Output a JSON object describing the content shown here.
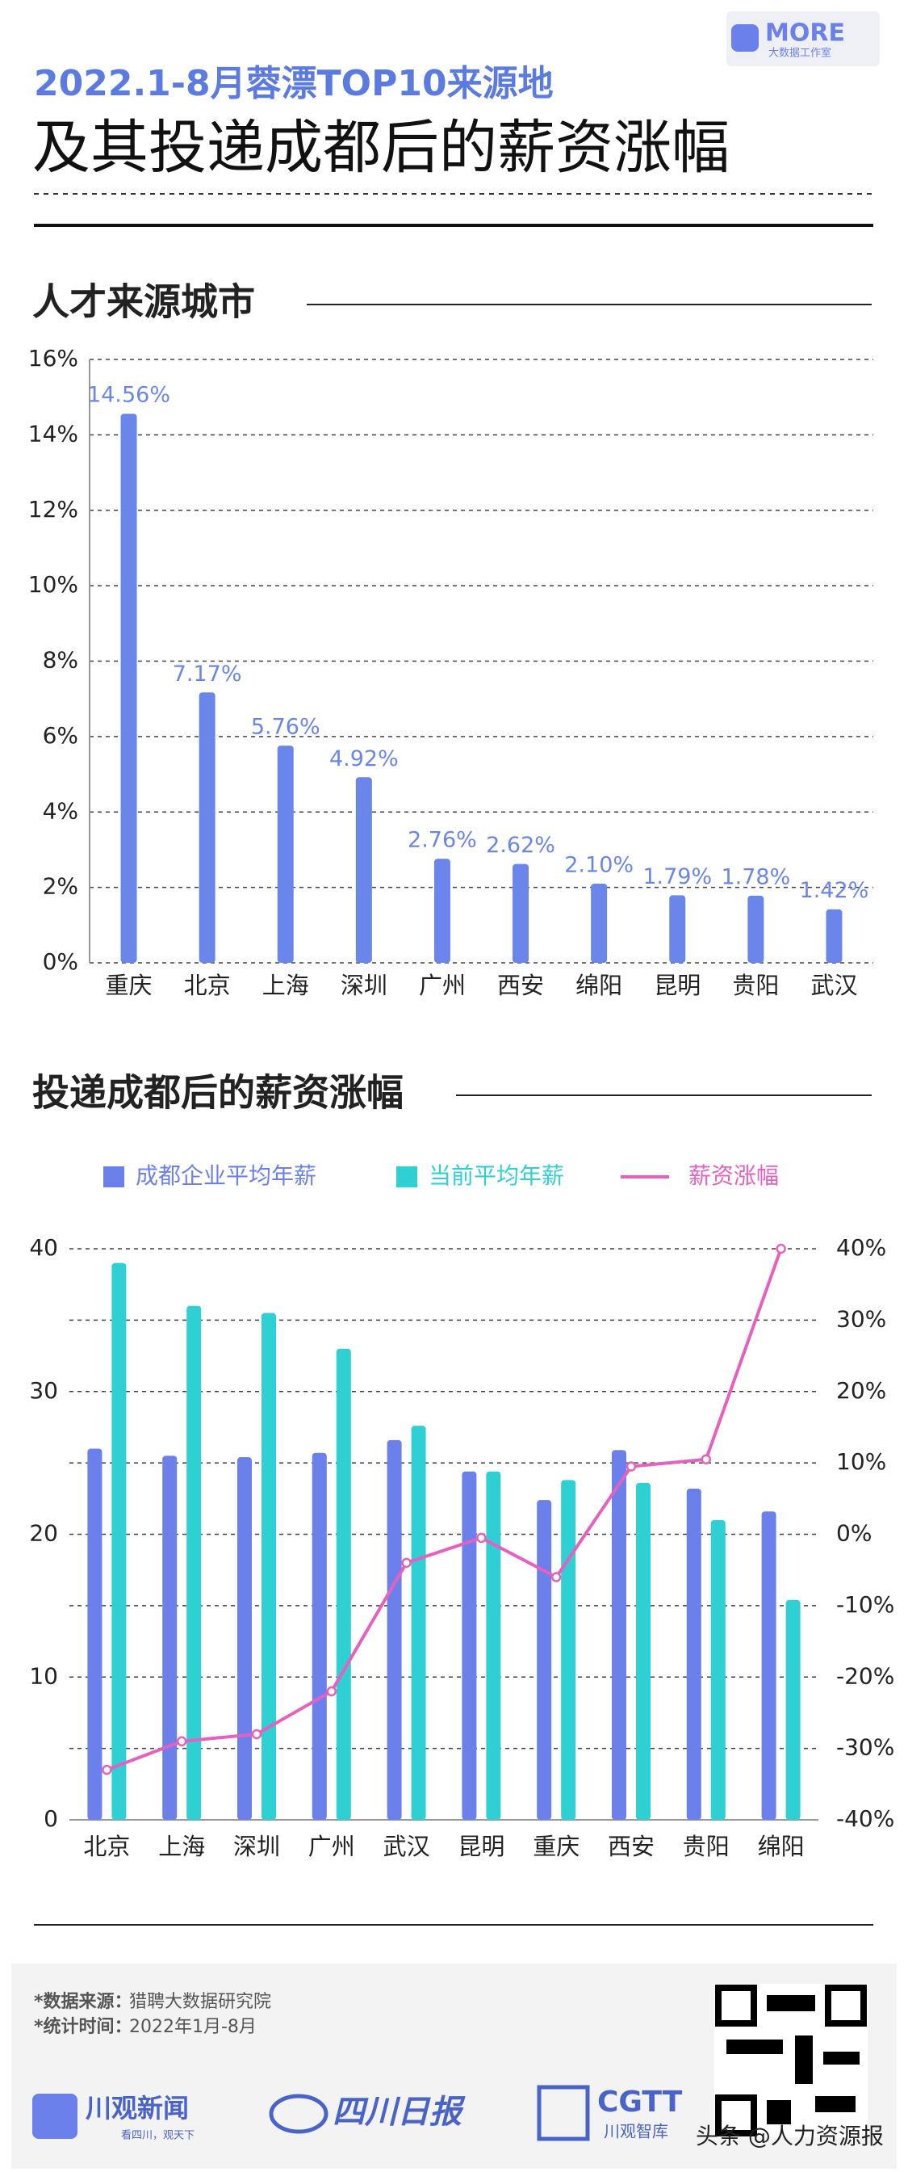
{
  "header": {
    "title_line1": "2022.1-8月蓉漂TOP10来源地",
    "title_line2": "及其投递成都后的薪资涨幅",
    "logo_text": "MORE",
    "logo_sub": "大数据工作室"
  },
  "chart_data": [
    {
      "type": "bar",
      "title": "人才来源城市",
      "categories": [
        "重庆",
        "北京",
        "上海",
        "深圳",
        "广州",
        "西安",
        "绵阳",
        "昆明",
        "贵阳",
        "武汉"
      ],
      "values": [
        14.56,
        7.17,
        5.76,
        4.92,
        2.76,
        2.62,
        2.1,
        1.79,
        1.78,
        1.42
      ],
      "value_labels": [
        "14.56%",
        "7.17%",
        "5.76%",
        "4.92%",
        "2.76%",
        "2.62%",
        "2.10%",
        "1.79%",
        "1.78%",
        "1.42%"
      ],
      "color": "#6b86ea",
      "ylim": [
        0,
        16
      ],
      "yticks": [
        {
          "value": 0,
          "label": "0%"
        },
        {
          "value": 2,
          "label": "2%"
        },
        {
          "value": 4,
          "label": "4%"
        },
        {
          "value": 6,
          "label": "6%"
        },
        {
          "value": 8,
          "label": "8%"
        },
        {
          "value": 10,
          "label": "10%"
        },
        {
          "value": 12,
          "label": "12%"
        },
        {
          "value": 14,
          "label": "14%"
        },
        {
          "value": 16,
          "label": "16%"
        }
      ],
      "grid": true
    },
    {
      "type": "combo",
      "title": "投递成都后的薪资涨幅",
      "categories": [
        "北京",
        "上海",
        "深圳",
        "广州",
        "武汉",
        "昆明",
        "重庆",
        "西安",
        "贵阳",
        "绵阳"
      ],
      "series": [
        {
          "name": "成都企业平均年薪",
          "type": "bar",
          "color": "#6b80ea",
          "values": [
            26,
            25.5,
            25.4,
            25.7,
            26.6,
            24.4,
            22.4,
            25.9,
            23.2,
            21.6
          ]
        },
        {
          "name": "当前平均年薪",
          "type": "bar",
          "color": "#2ed0d4",
          "values": [
            39,
            36,
            35.5,
            33,
            27.6,
            24.4,
            23.8,
            23.6,
            21,
            15.4
          ]
        },
        {
          "name": "薪资涨幅",
          "type": "line",
          "axis": "y2",
          "color": "#e660c0",
          "values": [
            -33,
            -29,
            -28,
            -22,
            -4,
            -0.5,
            -6,
            9.5,
            10.5,
            40
          ]
        }
      ],
      "ylim": [
        0,
        40
      ],
      "yticks": [
        0,
        10,
        20,
        30,
        40
      ],
      "y2lim": [
        -40,
        40
      ],
      "y2ticks": [
        {
          "value": -40,
          "label": "-40%"
        },
        {
          "value": -30,
          "label": "-30%"
        },
        {
          "value": -20,
          "label": "-20%"
        },
        {
          "value": -10,
          "label": "-10%"
        },
        {
          "value": 0,
          "label": "0%"
        },
        {
          "value": 10,
          "label": "10%"
        },
        {
          "value": 20,
          "label": "20%"
        },
        {
          "value": 30,
          "label": "30%"
        },
        {
          "value": 40,
          "label": "40%"
        }
      ],
      "grid": true
    }
  ],
  "footer": {
    "source_label": "*数据来源：",
    "source": "猎聘大数据研究院",
    "time_label": "*统计时间：",
    "time": "2022年1月-8月",
    "logos": [
      "川观新闻",
      "看四川，观天下",
      "四川日报",
      "CGTT",
      "川观智库"
    ],
    "watermark": "头条 @人力资源报"
  }
}
